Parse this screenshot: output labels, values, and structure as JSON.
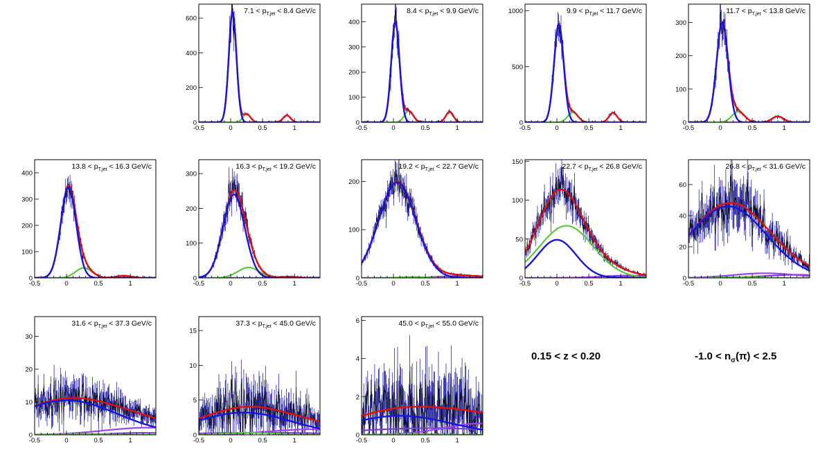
{
  "annotations": {
    "z_range": "0.15 < z < 0.20",
    "nsigma_prefix": "-1.0 < n",
    "nsigma_sub": "σ",
    "nsigma_suffix": "(π) < 2.5"
  },
  "colors": {
    "data": "#0a0a9a",
    "total_fit": "#e01010",
    "pion_fit": "#1414e6",
    "kaon_fit": "#5ac83c",
    "proton_fit": "#a040f0",
    "electron_fit": "#7a40c8"
  },
  "chart_data": [
    {
      "type": "line",
      "title_pre": "7.1 < p",
      "title_sub": "T,jet",
      "title_post": " < 8.4 GeV/c",
      "xlim": [
        -0.5,
        1.4
      ],
      "ylim": [
        0,
        680
      ],
      "xticks": [
        "-0.5",
        "0",
        "0.5",
        "1"
      ],
      "yticks": [
        0,
        200,
        400,
        600
      ],
      "series": [
        {
          "role": "pion",
          "amp": 635,
          "mu": 0.03,
          "sigma": 0.06
        },
        {
          "role": "kaon",
          "amp": 48,
          "mu": 0.25,
          "sigma": 0.06
        },
        {
          "role": "proton",
          "amp": 40,
          "mu": 0.88,
          "sigma": 0.06
        },
        {
          "role": "electron",
          "amp": 0,
          "mu": 1.0,
          "sigma": 0.3
        }
      ],
      "noise": 0.12
    },
    {
      "type": "line",
      "title_pre": "8.4 < p",
      "title_sub": "T,jet",
      "title_post": " < 9.9 GeV/c",
      "xlim": [
        -0.5,
        1.4
      ],
      "ylim": [
        0,
        470
      ],
      "xticks": [
        "-0.5",
        "0",
        "0.5",
        "1"
      ],
      "yticks": [
        0,
        100,
        200,
        300,
        400
      ],
      "series": [
        {
          "role": "pion",
          "amp": 400,
          "mu": 0.03,
          "sigma": 0.065
        },
        {
          "role": "kaon",
          "amp": 45,
          "mu": 0.24,
          "sigma": 0.07
        },
        {
          "role": "proton",
          "amp": 42,
          "mu": 0.88,
          "sigma": 0.06
        },
        {
          "role": "electron",
          "amp": 0,
          "mu": 1.0,
          "sigma": 0.3
        }
      ],
      "noise": 0.14
    },
    {
      "type": "line",
      "title_pre": "9.9 < p",
      "title_sub": "T,jet",
      "title_post": " < 11.7 GeV/c",
      "xlim": [
        -0.5,
        1.4
      ],
      "ylim": [
        0,
        1060
      ],
      "xticks": [
        "-0.5",
        "0",
        "0.5",
        "1"
      ],
      "yticks": [
        0,
        500,
        1000
      ],
      "series": [
        {
          "role": "pion",
          "amp": 880,
          "mu": 0.03,
          "sigma": 0.075
        },
        {
          "role": "kaon",
          "amp": 90,
          "mu": 0.25,
          "sigma": 0.08
        },
        {
          "role": "proton",
          "amp": 85,
          "mu": 0.88,
          "sigma": 0.065
        },
        {
          "role": "electron",
          "amp": 0,
          "mu": 1.0,
          "sigma": 0.3
        }
      ],
      "noise": 0.12
    },
    {
      "type": "line",
      "title_pre": "11.7 < p",
      "title_sub": "T,jet",
      "title_post": " < 13.8 GeV/c",
      "xlim": [
        -0.5,
        1.4
      ],
      "ylim": [
        0,
        355
      ],
      "xticks": [
        "-0.5",
        "0",
        "0.5",
        "1"
      ],
      "yticks": [
        0,
        100,
        200,
        300
      ],
      "series": [
        {
          "role": "pion",
          "amp": 300,
          "mu": 0.03,
          "sigma": 0.09
        },
        {
          "role": "kaon",
          "amp": 32,
          "mu": 0.28,
          "sigma": 0.1
        },
        {
          "role": "proton",
          "amp": 18,
          "mu": 0.9,
          "sigma": 0.09
        },
        {
          "role": "electron",
          "amp": 0,
          "mu": 1.0,
          "sigma": 0.3
        }
      ],
      "noise": 0.14
    },
    {
      "type": "line",
      "title_pre": "13.8 < p",
      "title_sub": "T,jet",
      "title_post": " < 16.3 GeV/c",
      "xlim": [
        -0.5,
        1.4
      ],
      "ylim": [
        0,
        450
      ],
      "xticks": [
        "-0.5",
        "0",
        "0.5",
        "1"
      ],
      "yticks": [
        0,
        100,
        200,
        300,
        400
      ],
      "series": [
        {
          "role": "pion",
          "amp": 345,
          "mu": 0.03,
          "sigma": 0.12
        },
        {
          "role": "kaon",
          "amp": 38,
          "mu": 0.27,
          "sigma": 0.13
        },
        {
          "role": "proton",
          "amp": 8,
          "mu": 0.9,
          "sigma": 0.12
        },
        {
          "role": "electron",
          "amp": 0,
          "mu": 1.0,
          "sigma": 0.3
        }
      ],
      "noise": 0.12
    },
    {
      "type": "line",
      "title_pre": "16.3 < p",
      "title_sub": "T,jet",
      "title_post": " < 19.2 GeV/c",
      "xlim": [
        -0.5,
        1.4
      ],
      "ylim": [
        0,
        340
      ],
      "xticks": [
        "-0.5",
        "0",
        "0.5",
        "1"
      ],
      "yticks": [
        0,
        100,
        200,
        300
      ],
      "series": [
        {
          "role": "pion",
          "amp": 240,
          "mu": 0.05,
          "sigma": 0.17
        },
        {
          "role": "kaon",
          "amp": 30,
          "mu": 0.28,
          "sigma": 0.17
        },
        {
          "role": "proton",
          "amp": 3,
          "mu": 0.9,
          "sigma": 0.15
        },
        {
          "role": "electron",
          "amp": 0,
          "mu": 1.0,
          "sigma": 0.3
        }
      ],
      "noise": 0.14
    },
    {
      "type": "line",
      "title_pre": "19.2 < p",
      "title_sub": "T,jet",
      "title_post": " < 22.7 GeV/c",
      "xlim": [
        -0.5,
        1.4
      ],
      "ylim": [
        0,
        245
      ],
      "xticks": [
        "-0.5",
        "0",
        "0.5",
        "1"
      ],
      "yticks": [
        0,
        100,
        200
      ],
      "series": [
        {
          "role": "pion",
          "amp": 198,
          "mu": 0.06,
          "sigma": 0.29
        },
        {
          "role": "kaon",
          "amp": 2,
          "mu": 0.3,
          "sigma": 0.2
        },
        {
          "role": "proton",
          "amp": 2,
          "mu": 0.9,
          "sigma": 0.2
        },
        {
          "role": "electron",
          "amp": 4,
          "mu": 1.1,
          "sigma": 0.4
        }
      ],
      "noise": 0.12
    },
    {
      "type": "line",
      "title_pre": "22.7 < p",
      "title_sub": "T,jet",
      "title_post": " < 26.8 GeV/c",
      "xlim": [
        -0.5,
        1.4
      ],
      "ylim": [
        0,
        152
      ],
      "xticks": [
        "-0.5",
        "0",
        "0.5",
        "1"
      ],
      "yticks": [
        0,
        50,
        100,
        150
      ],
      "series": [
        {
          "role": "pion",
          "amp": 49,
          "mu": 0.0,
          "sigma": 0.3
        },
        {
          "role": "kaon",
          "amp": 67,
          "mu": 0.15,
          "sigma": 0.42
        },
        {
          "role": "proton",
          "amp": 2,
          "mu": 0.9,
          "sigma": 0.3
        },
        {
          "role": "electron",
          "amp": 3,
          "mu": 1.1,
          "sigma": 0.4
        }
      ],
      "noise": 0.16
    },
    {
      "type": "line",
      "title_pre": "26.8 < p",
      "title_sub": "T,jet",
      "title_post": " < 31.6 GeV/c",
      "xlim": [
        -0.5,
        1.4
      ],
      "ylim": [
        0,
        76
      ],
      "xticks": [
        "-0.5",
        "0",
        "0.5",
        "1"
      ],
      "yticks": [
        0,
        20,
        40,
        60
      ],
      "series": [
        {
          "role": "pion",
          "amp": 46,
          "mu": 0.12,
          "sigma": 0.6
        },
        {
          "role": "kaon",
          "amp": 0.5,
          "mu": 0.3,
          "sigma": 0.3
        },
        {
          "role": "proton",
          "amp": 3,
          "mu": 0.7,
          "sigma": 0.5
        },
        {
          "role": "electron",
          "amp": 2,
          "mu": 1.2,
          "sigma": 0.5
        }
      ],
      "noise": 0.28
    },
    {
      "type": "line",
      "title_pre": "31.6 < p",
      "title_sub": "T,jet",
      "title_post": " < 37.3 GeV/c",
      "xlim": [
        -0.5,
        1.4
      ],
      "ylim": [
        0,
        36
      ],
      "xticks": [
        "-0.5",
        "0",
        "0.5",
        "1"
      ],
      "yticks": [
        0,
        10,
        20,
        30
      ],
      "series": [
        {
          "role": "pion",
          "amp": 10.5,
          "mu": 0.0,
          "sigma": 0.8
        },
        {
          "role": "kaon",
          "amp": 0.3,
          "mu": 0.3,
          "sigma": 0.4
        },
        {
          "role": "proton",
          "amp": 2.2,
          "mu": 1.3,
          "sigma": 0.7
        },
        {
          "role": "electron",
          "amp": 0.6,
          "mu": 1.2,
          "sigma": 0.5
        }
      ],
      "noise": 0.38
    },
    {
      "type": "line",
      "title_pre": "37.3 < p",
      "title_sub": "T,jet",
      "title_post": " < 45.0 GeV/c",
      "xlim": [
        -0.5,
        1.4
      ],
      "ylim": [
        0,
        17
      ],
      "xticks": [
        "-0.5",
        "0",
        "0.5",
        "1"
      ],
      "yticks": [
        0,
        5,
        10,
        15
      ],
      "series": [
        {
          "role": "pion",
          "amp": 3.2,
          "mu": 0.2,
          "sigma": 0.75
        },
        {
          "role": "kaon",
          "amp": 0.3,
          "mu": 0.3,
          "sigma": 0.4
        },
        {
          "role": "proton",
          "amp": 0.8,
          "mu": 1.3,
          "sigma": 0.7
        },
        {
          "role": "electron",
          "amp": 0.3,
          "mu": 0.5,
          "sigma": 1.2
        }
      ],
      "noise": 0.7
    },
    {
      "type": "line",
      "title_pre": "45.0 < p",
      "title_sub": "T,jet",
      "title_post": " < 55.0 GeV/c",
      "xlim": [
        -0.5,
        1.4
      ],
      "ylim": [
        0,
        6.2
      ],
      "xticks": [
        "-0.5",
        "0",
        "0.5",
        "1"
      ],
      "yticks": [
        0,
        2,
        4,
        6
      ],
      "series": [
        {
          "role": "pion",
          "amp": 1.0,
          "mu": 0.1,
          "sigma": 0.8
        },
        {
          "role": "kaon",
          "amp": 0.05,
          "mu": 0.3,
          "sigma": 0.4
        },
        {
          "role": "proton",
          "amp": 0.6,
          "mu": 1.4,
          "sigma": 0.6
        },
        {
          "role": "electron",
          "amp": 0.35,
          "mu": 0.6,
          "sigma": 1.2
        }
      ],
      "noise": 1.0
    }
  ]
}
